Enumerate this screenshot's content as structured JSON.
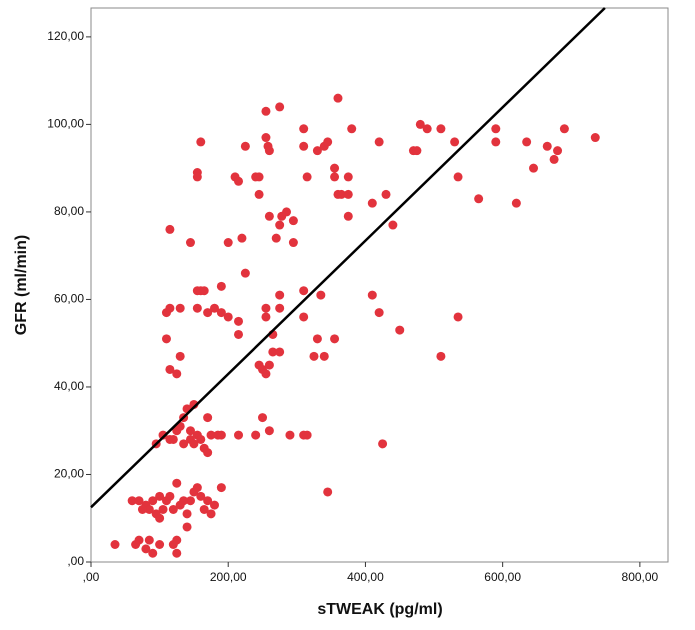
{
  "chart_data": {
    "type": "scatter",
    "x_label": "sTWEAK (pg/ml)",
    "y_label": "GFR (ml/min)",
    "color": "#e2333d",
    "line_color": "#000000",
    "xlim": [
      0,
      841
    ],
    "ylim": [
      0,
      126.6
    ],
    "xticks": [
      {
        "value": 0,
        "label": ",00"
      },
      {
        "value": 200,
        "label": "200,00"
      },
      {
        "value": 400,
        "label": "400,00"
      },
      {
        "value": 600,
        "label": "600,00"
      },
      {
        "value": 800,
        "label": "800,00"
      }
    ],
    "yticks": [
      {
        "value": 0,
        "label": ",00"
      },
      {
        "value": 20,
        "label": "20,00"
      },
      {
        "value": 40,
        "label": "40,00"
      },
      {
        "value": 60,
        "label": "60,00"
      },
      {
        "value": 80,
        "label": "80,00"
      },
      {
        "value": 100,
        "label": "100,00"
      },
      {
        "value": 120,
        "label": "120,00"
      }
    ],
    "x": [
      35,
      65,
      70,
      60,
      70,
      80,
      85,
      90,
      95,
      100,
      100,
      105,
      110,
      120,
      115,
      125,
      125,
      120,
      125,
      90,
      80,
      100,
      140,
      140,
      145,
      150,
      155,
      160,
      165,
      170,
      175,
      180,
      190,
      135,
      130,
      85,
      75,
      95,
      105,
      115,
      125,
      130,
      135,
      140,
      150,
      145,
      150,
      155,
      160,
      165,
      170,
      175,
      185,
      190,
      145,
      120,
      135,
      170,
      215,
      240,
      250,
      260,
      290,
      310,
      315,
      345,
      425,
      110,
      130,
      125,
      115,
      110,
      115,
      130,
      155,
      155,
      160,
      165,
      170,
      180,
      190,
      200,
      190,
      215,
      215,
      250,
      255,
      260,
      245,
      265,
      275,
      255,
      255,
      265,
      275,
      275,
      310,
      310,
      330,
      325,
      340,
      335,
      355,
      410,
      420,
      450,
      510,
      535,
      115,
      145,
      200,
      220,
      225,
      210,
      215,
      240,
      245,
      245,
      225,
      155,
      155,
      160,
      255,
      255,
      258,
      260,
      270,
      275,
      278,
      285,
      295,
      295,
      260,
      275,
      310,
      310,
      315,
      330,
      340,
      345,
      355,
      355,
      360,
      365,
      360,
      375,
      375,
      375,
      380,
      420,
      410,
      430,
      440,
      470,
      475,
      480,
      490,
      510,
      530,
      535,
      565,
      590,
      590,
      620,
      635,
      645,
      665,
      675,
      680,
      690,
      735
    ],
    "y": [
      4,
      4,
      5,
      14,
      14,
      13,
      12,
      14,
      11,
      15,
      10,
      12,
      14,
      12,
      15,
      18,
      5,
      4,
      2,
      2,
      3,
      4,
      8,
      11,
      14,
      16,
      17,
      15,
      12,
      14,
      11,
      13,
      17,
      14,
      13,
      5,
      12,
      27,
      29,
      28,
      30,
      31,
      33,
      35,
      36,
      28,
      27,
      29,
      28,
      26,
      25,
      29,
      29,
      29,
      30,
      28,
      27,
      33,
      29,
      29,
      33,
      30,
      29,
      29,
      29,
      16,
      27,
      51,
      47,
      43,
      44,
      57,
      58,
      58,
      58,
      62,
      62,
      62,
      57,
      58,
      57,
      56,
      63,
      55,
      52,
      44,
      43,
      45,
      45,
      48,
      48,
      56,
      58,
      52,
      58,
      61,
      62,
      56,
      51,
      47,
      47,
      61,
      51,
      61,
      57,
      53,
      47,
      56,
      76,
      73,
      73,
      74,
      66,
      88,
      87,
      88,
      88,
      84,
      95,
      89,
      88,
      96,
      97,
      103,
      95,
      94,
      74,
      77,
      79,
      80,
      78,
      73,
      79,
      104,
      99,
      95,
      88,
      94,
      95,
      96,
      88,
      90,
      84,
      84,
      106,
      79,
      84,
      88,
      99,
      96,
      82,
      84,
      77,
      94,
      94,
      100,
      99,
      99,
      96,
      88,
      83,
      99,
      96,
      82,
      96,
      90,
      95,
      92,
      94,
      99,
      97
    ],
    "fit_line": {
      "x": [
        0,
        749
      ],
      "y": [
        12.5,
        126.6
      ]
    }
  }
}
